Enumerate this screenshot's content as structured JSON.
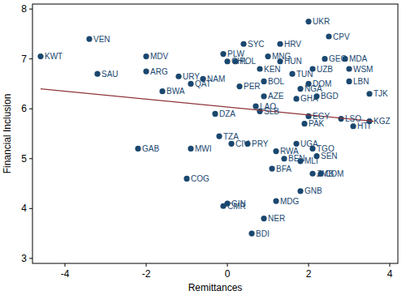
{
  "chart_data": {
    "type": "scatter",
    "x_label": "Remittances",
    "y_label": "Financial Inclusion",
    "xlim": [
      -4.8,
      4.2
    ],
    "xticks": [
      -4,
      -2,
      0,
      2,
      4
    ],
    "ylim": [
      2.9,
      8.1
    ],
    "yticks": [
      3,
      4,
      5,
      6,
      7,
      8
    ],
    "series": [
      {
        "type": "scatter",
        "marker": "circle",
        "color": "#1a476f",
        "labels": [
          "KWT",
          "VEN",
          "SAU",
          "MDV",
          "ARG",
          "URY",
          "NAM",
          "QAT",
          "BWA",
          "PLW",
          "SYC",
          "MNG",
          "CHL",
          "POL",
          "HUN",
          "HRV",
          "UKR",
          "CPV",
          "GEO",
          "MDA",
          "KEN",
          "PER",
          "UZB",
          "WSM",
          "TUN",
          "BOL",
          "NGA",
          "DOM",
          "LBN",
          "BGD",
          "AZE",
          "GHA",
          "TJK",
          "LAO",
          "SLB",
          "EGY",
          "DZA",
          "LSO",
          "KGZ",
          "HTI",
          "PAK",
          "TZA",
          "CIV",
          "PRY",
          "UGA",
          "TGO",
          "GAB",
          "MWI",
          "RWA",
          "BEN",
          "MLI",
          "SEN",
          "BFA",
          "ZMB",
          "COM",
          "GNB",
          "COG",
          "GIN",
          "CMR",
          "MDG",
          "NER",
          "BDI"
        ],
        "x": [
          -4.6,
          -3.4,
          -3.2,
          -2.0,
          -2.0,
          -1.2,
          -0.6,
          -0.9,
          -1.6,
          -0.1,
          0.4,
          1.0,
          0.0,
          0.2,
          1.3,
          1.3,
          2.0,
          2.5,
          2.4,
          2.9,
          0.8,
          0.3,
          2.1,
          3.0,
          1.6,
          0.9,
          1.8,
          2.0,
          3.0,
          2.2,
          0.9,
          1.7,
          3.5,
          0.7,
          0.8,
          2.0,
          -0.3,
          2.8,
          3.5,
          3.1,
          1.9,
          -0.2,
          0.1,
          0.5,
          1.7,
          2.1,
          -2.2,
          -0.9,
          1.2,
          1.4,
          1.8,
          2.2,
          1.1,
          2.1,
          2.3,
          1.8,
          -1.0,
          0.0,
          -0.1,
          1.2,
          0.9,
          0.6
        ],
        "values": [
          7.05,
          7.4,
          6.7,
          7.05,
          6.75,
          6.65,
          6.6,
          6.5,
          6.35,
          7.1,
          7.3,
          7.05,
          6.95,
          6.95,
          6.95,
          7.3,
          7.75,
          7.45,
          7.0,
          7.0,
          6.8,
          6.45,
          6.8,
          6.8,
          6.7,
          6.55,
          6.4,
          6.5,
          6.55,
          6.25,
          6.25,
          6.2,
          6.3,
          6.05,
          5.95,
          5.85,
          5.9,
          5.8,
          5.75,
          5.65,
          5.7,
          5.45,
          5.3,
          5.3,
          5.3,
          5.2,
          5.2,
          5.2,
          5.15,
          5.0,
          4.95,
          5.05,
          4.8,
          4.7,
          4.7,
          4.35,
          4.6,
          4.1,
          4.05,
          4.15,
          3.8,
          3.5
        ]
      },
      {
        "type": "line",
        "line_style": "solid",
        "color": "#90353b",
        "x": [
          -4.6,
          3.6
        ],
        "values": [
          6.4,
          5.75
        ]
      }
    ]
  }
}
